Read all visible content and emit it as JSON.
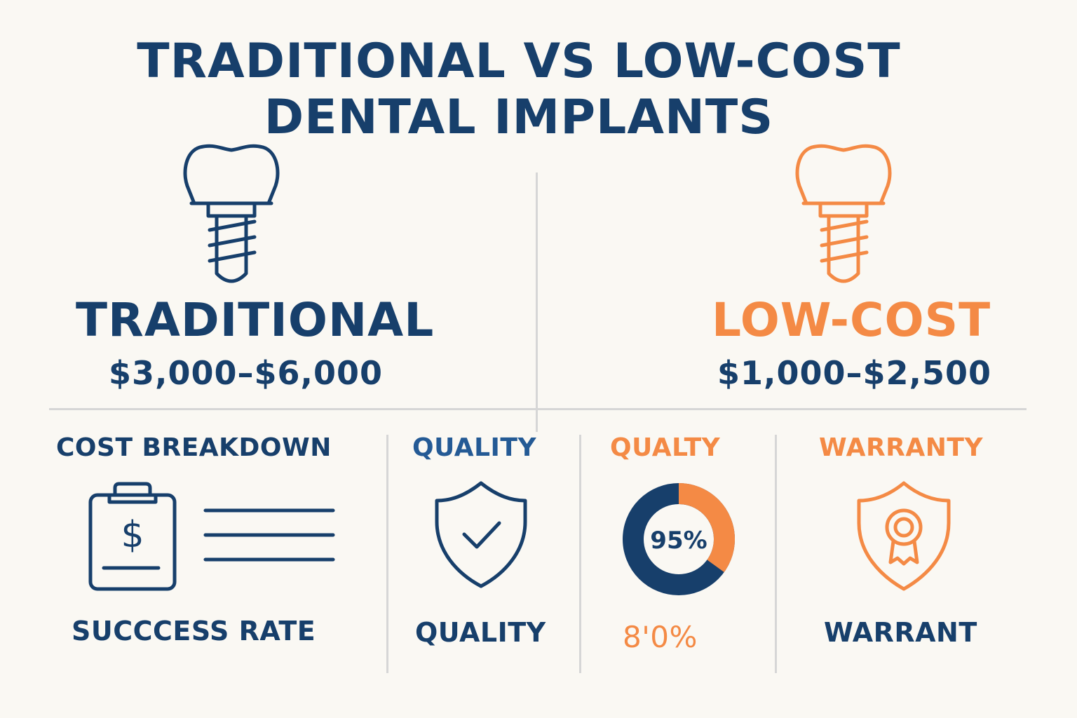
{
  "title": {
    "line1": "TRADITIONAL VS LOW-COST",
    "line2": "DENTAL IMPLANTS"
  },
  "traditional": {
    "label": "TRADITIONAL",
    "price": "$3,000–$6,000",
    "icon": "dental-implant-icon",
    "color": "#173f6b"
  },
  "low_cost": {
    "label": "LOW-COST",
    "price": "$1,000–$2,500",
    "icon": "dental-implant-icon",
    "color": "#f48a45"
  },
  "sections": {
    "cost_breakdown": {
      "header": "COST BREAKDOWN",
      "icon": "clipboard-dollar-icon",
      "bottom_label": "SUCCCESS RATE"
    },
    "quality": {
      "header": "QUALITY",
      "icon": "shield-check-icon",
      "bottom_label": "QUALITY"
    },
    "quality_low": {
      "header": "QUALTY",
      "icon": "donut-chart-icon",
      "donut_value": "95%",
      "donut_orange_fraction": 0.35,
      "bottom_label": "8'0%"
    },
    "warranty": {
      "header": "WARRANTY",
      "icon": "shield-medal-icon",
      "bottom_label": "WARRANT"
    }
  }
}
